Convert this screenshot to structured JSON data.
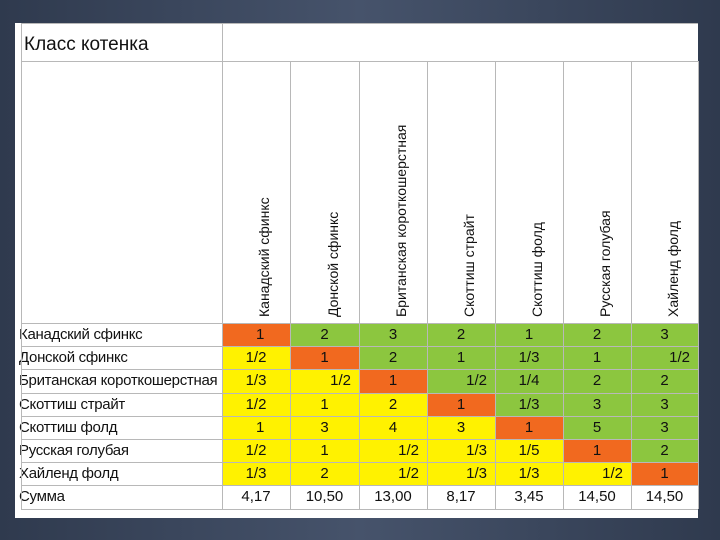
{
  "title": "Класс котенка",
  "columns": [
    "Канадский сфинкс",
    "Донской сфинкс",
    "Британская короткошерстная",
    "Скоттиш страйт",
    "Скоттиш фолд",
    "Русская голубая",
    "Хайленд фолд"
  ],
  "rows": [
    {
      "label": "Канадский сфинкс",
      "cells": [
        "1",
        "2",
        "3",
        "2",
        "1",
        "2",
        "3"
      ],
      "colors": [
        "#f1691f",
        "#8cc63f",
        "#8cc63f",
        "#8cc63f",
        "#8cc63f",
        "#8cc63f",
        "#8cc63f"
      ],
      "align": [
        "l",
        "c",
        "c",
        "c",
        "c",
        "c",
        "c"
      ]
    },
    {
      "label": "Донской сфинкс",
      "cells": [
        "1/2",
        "1",
        "2",
        "1",
        "1/3",
        "1",
        "1/2"
      ],
      "colors": [
        "#fff200",
        "#f1691f",
        "#8cc63f",
        "#8cc63f",
        "#8cc63f",
        "#8cc63f",
        "#8cc63f"
      ],
      "align": [
        "c",
        "c",
        "c",
        "c",
        "c",
        "c",
        "r"
      ]
    },
    {
      "label": "Британская короткошерстная",
      "cells": [
        "1/3",
        "1/2",
        "1",
        "1/2",
        "1/4",
        "2",
        "2"
      ],
      "colors": [
        "#fff200",
        "#fff200",
        "#f1691f",
        "#8cc63f",
        "#8cc63f",
        "#8cc63f",
        "#8cc63f"
      ],
      "align": [
        "c",
        "r",
        "c",
        "r",
        "c",
        "c",
        "c"
      ]
    },
    {
      "label": "Скоттиш страйт",
      "cells": [
        "1/2",
        "1",
        "2",
        "1",
        "1/3",
        "3",
        "3"
      ],
      "colors": [
        "#fff200",
        "#fff200",
        "#fff200",
        "#f1691f",
        "#8cc63f",
        "#8cc63f",
        "#8cc63f"
      ],
      "align": [
        "c",
        "c",
        "c",
        "c",
        "c",
        "c",
        "c"
      ]
    },
    {
      "label": "Скоттиш фолд",
      "cells": [
        "1",
        "3",
        "4",
        "3",
        "1",
        "5",
        "3"
      ],
      "colors": [
        "#fff200",
        "#fff200",
        "#fff200",
        "#fff200",
        "#f1691f",
        "#8cc63f",
        "#8cc63f"
      ],
      "align": [
        "l",
        "c",
        "c",
        "c",
        "c",
        "c",
        "c"
      ]
    },
    {
      "label": "Русская голубая",
      "cells": [
        "1/2",
        "1",
        "1/2",
        "1/3",
        "1/5",
        "1",
        "2"
      ],
      "colors": [
        "#fff200",
        "#fff200",
        "#fff200",
        "#fff200",
        "#fff200",
        "#f1691f",
        "#8cc63f"
      ],
      "align": [
        "c",
        "c",
        "r",
        "r",
        "c",
        "c",
        "c"
      ]
    },
    {
      "label": "Хайленд фолд",
      "cells": [
        "1/3",
        "2",
        "1/2",
        "1/3",
        "1/3",
        "1/2",
        "1"
      ],
      "colors": [
        "#fff200",
        "#fff200",
        "#fff200",
        "#fff200",
        "#fff200",
        "#fff200",
        "#f1691f"
      ],
      "align": [
        "c",
        "c",
        "r",
        "r",
        "c",
        "r",
        "c"
      ]
    }
  ],
  "sum": {
    "label": "Сумма",
    "cells": [
      "4,17",
      "10,50",
      "13,00",
      "8,17",
      "3,45",
      "14,50",
      "14,50"
    ]
  }
}
